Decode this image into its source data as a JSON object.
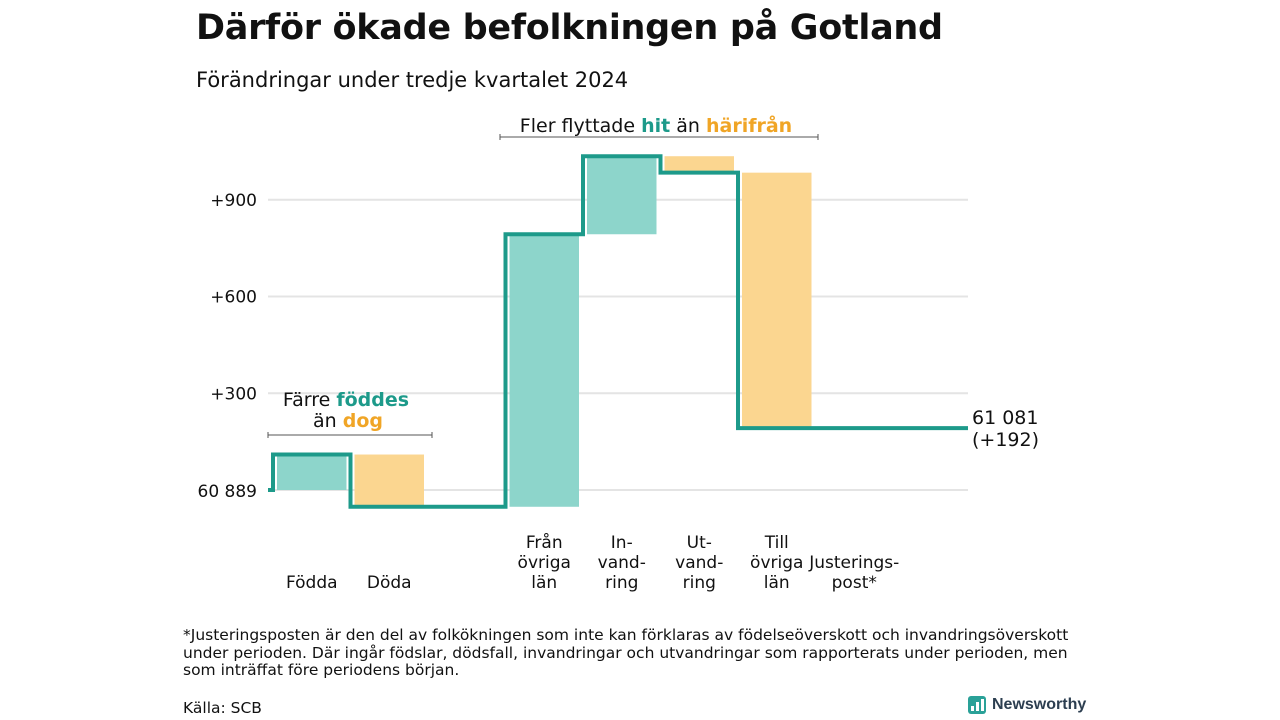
{
  "title": "Därför ökade befolkningen på Gotland",
  "subtitle": "Förändringar under tredje kvartalet 2024",
  "chart_data": {
    "type": "waterfall",
    "start_value": 60889,
    "start_label": "60 889",
    "end_label_lines": [
      "61 081",
      "(+192)"
    ],
    "y_ticks": [
      {
        "value": 300,
        "label": "+300"
      },
      {
        "value": 600,
        "label": "+600"
      },
      {
        "value": 900,
        "label": "+900"
      }
    ],
    "steps": [
      {
        "label_lines": [
          "Födda"
        ],
        "change": 110,
        "kind": "increase"
      },
      {
        "label_lines": [
          "Döda"
        ],
        "change": -162,
        "kind": "decrease"
      },
      {
        "label_lines": [],
        "change": 0,
        "kind": "gap"
      },
      {
        "label_lines": [
          "Från",
          "övriga",
          "län"
        ],
        "change": 845,
        "kind": "increase"
      },
      {
        "label_lines": [
          "In-",
          "vand-",
          "ring"
        ],
        "change": 242,
        "kind": "increase"
      },
      {
        "label_lines": [
          "Ut-",
          "vand-",
          "ring"
        ],
        "change": -51,
        "kind": "decrease"
      },
      {
        "label_lines": [
          "Till",
          "övriga",
          "län"
        ],
        "change": -792,
        "kind": "decrease"
      },
      {
        "label_lines": [
          "Justerings-",
          "post*"
        ],
        "change": 0,
        "kind": "adjustment"
      }
    ],
    "colors": {
      "increase": "#8dd5cb",
      "decrease": "#fbd690",
      "line": "#1d9a8a",
      "hit": "#1d9a8a",
      "away": "#f0a526"
    },
    "annotations": {
      "births": {
        "line1_pre": "Färre ",
        "line1_hi": "föddes",
        "line2_pre": "än ",
        "line2_hi": "dog"
      },
      "migration": {
        "pre": "Fler flyttade ",
        "hi1": "hit",
        "mid": " än ",
        "hi2": "härifrån"
      }
    }
  },
  "footnote": "*Justeringsposten är den del av folkökningen som inte kan förklaras av födelseöverskott och invandringsöverskott under perioden. Där ingår födslar, dödsfall, invandringar och utvandringar som rapporterats under perioden, men som inträffat före periodens början.",
  "source": "Källa: SCB",
  "brand": "Newsworthy"
}
